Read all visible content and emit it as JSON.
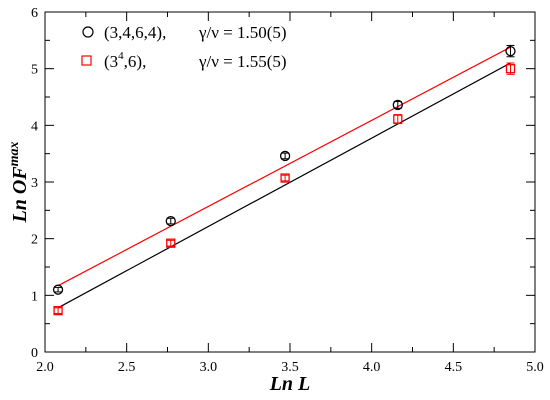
{
  "chart_data": {
    "type": "scatter",
    "xlabel": "Ln L",
    "ylabel_main": "Ln OF",
    "ylabel_sup": "max",
    "xlim": [
      2.0,
      5.0
    ],
    "ylim": [
      0,
      6
    ],
    "xticks": [
      "2.0",
      "2.5",
      "3.0",
      "3.5",
      "4.0",
      "4.5",
      "5.0"
    ],
    "yticks": [
      "0",
      "1",
      "2",
      "3",
      "4",
      "5",
      "6"
    ],
    "grid": false,
    "legend_position": "top-left",
    "series": [
      {
        "name": "(3,4,6,4),",
        "gamma_text": "γ/ν = 1.50(5)",
        "marker": "circle",
        "color": "#000000",
        "points": [
          {
            "x": 2.08,
            "y": 1.1,
            "err": 0.04
          },
          {
            "x": 2.77,
            "y": 2.31,
            "err": 0.05
          },
          {
            "x": 3.47,
            "y": 3.46,
            "err": 0.05
          },
          {
            "x": 4.16,
            "y": 4.36,
            "err": 0.06
          },
          {
            "x": 4.85,
            "y": 5.31,
            "err": 0.1
          }
        ],
        "fit": {
          "x": [
            2.08,
            4.85
          ],
          "y": [
            0.78,
            5.1
          ]
        }
      },
      {
        "name_main": "(3",
        "name_sup": "4",
        "name_tail": ",6),",
        "gamma_text": "γ/ν = 1.55(5)",
        "marker": "square",
        "color": "#ff0000",
        "points": [
          {
            "x": 2.08,
            "y": 0.73,
            "err": 0.05
          },
          {
            "x": 2.77,
            "y": 1.92,
            "err": 0.05
          },
          {
            "x": 3.47,
            "y": 3.07,
            "err": 0.05
          },
          {
            "x": 4.16,
            "y": 4.11,
            "err": 0.08
          },
          {
            "x": 4.85,
            "y": 5.0,
            "err": 0.1
          }
        ],
        "fit": {
          "x": [
            2.08,
            4.85
          ],
          "y": [
            1.17,
            5.38
          ]
        }
      }
    ]
  }
}
